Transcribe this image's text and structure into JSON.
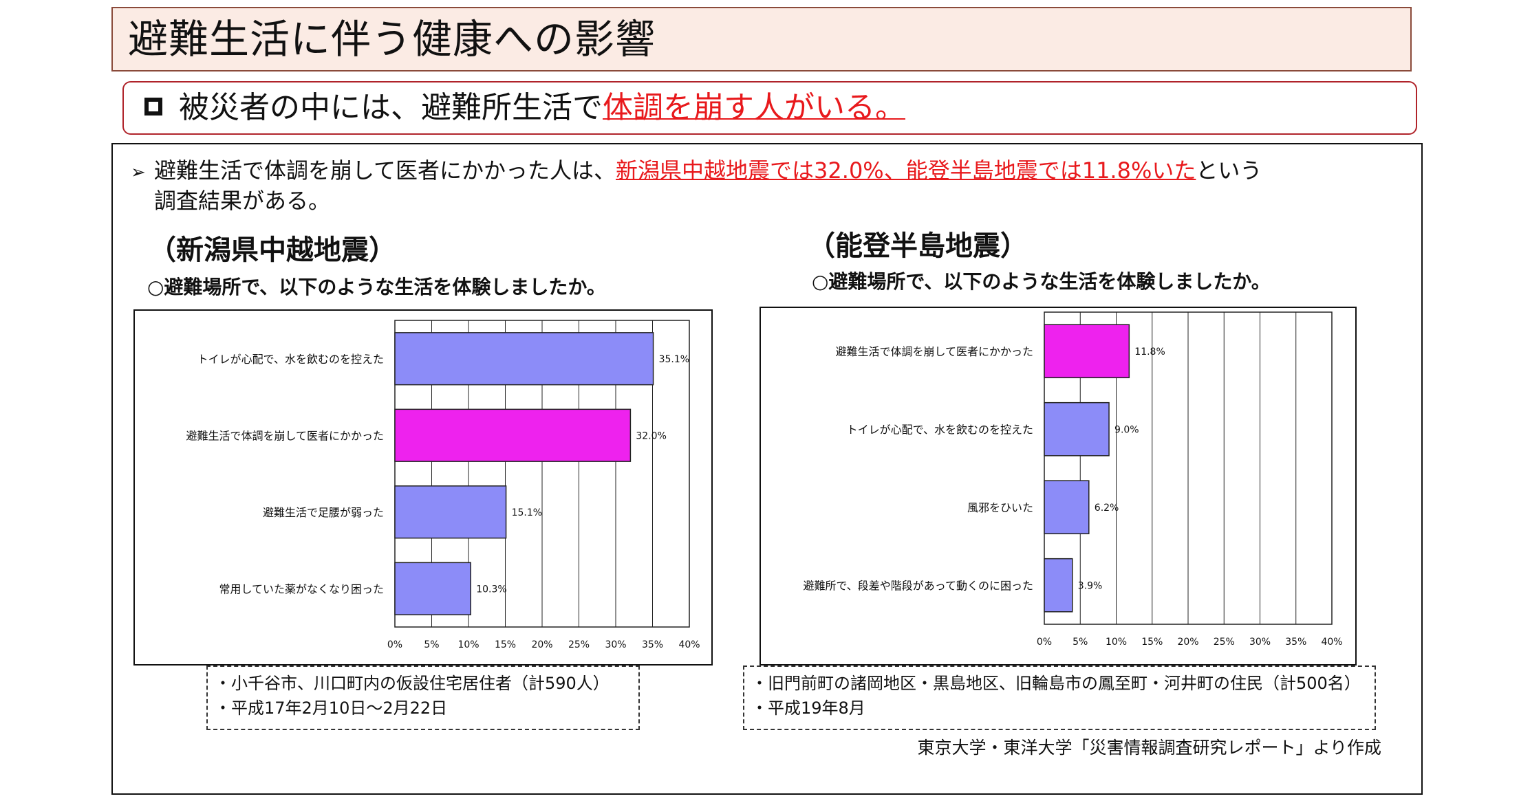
{
  "page": {
    "title": "避難生活に伴う健康への影響",
    "subtitle_prefix": "被災者の中には、避難所生活で",
    "subtitle_highlight": "体調を崩す人がいる。",
    "bullet": {
      "prefix": "避難生活で体調を崩して医者にかかった人は、",
      "highlight": "新潟県中越地震では32.0%、能登半島地震では11.8%いた",
      "suffix": "という",
      "line2": "調査結果がある。"
    },
    "source": "東京大学・東洋大学「災害情報調査研究レポート」より作成"
  },
  "colors": {
    "bar": "#8c8cf8",
    "highlight_bar": "#ee22ee",
    "accent_red": "#e8191c"
  },
  "panels": [
    {
      "heading": "（新潟県中越地震）",
      "question": "○避難場所で、以下のような生活を体験しましたか。",
      "notes": [
        "・小千谷市、川口町内の仮設住宅居住者（計590人）",
        "・平成17年2月10日～2月22日"
      ]
    },
    {
      "heading": "（能登半島地震）",
      "question": "○避難場所で、以下のような生活を体験しましたか。",
      "notes": [
        "・旧門前町の諸岡地区・黒島地区、旧輪島市の鳳至町・河井町の住民（計500名）",
        "・平成19年8月"
      ]
    }
  ],
  "chart_data": [
    {
      "type": "bar",
      "orientation": "horizontal",
      "title": "",
      "categories": [
        "トイレが心配で、水を飲むのを控えた",
        "避難生活で体調を崩して医者にかかった",
        "避難生活で足腰が弱った",
        "常用していた薬がなくなり困った"
      ],
      "values": [
        35.1,
        32.0,
        15.1,
        10.3
      ],
      "value_labels": [
        "35.1%",
        "32.0%",
        "15.1%",
        "10.3%"
      ],
      "highlight_index": 1,
      "xlim": [
        0,
        40
      ],
      "xticks": [
        "0%",
        "5%",
        "10%",
        "15%",
        "20%",
        "25%",
        "30%",
        "35%",
        "40%"
      ],
      "grid": "vertical"
    },
    {
      "type": "bar",
      "orientation": "horizontal",
      "title": "",
      "categories": [
        "避難生活で体調を崩して医者にかかった",
        "トイレが心配で、水を飲むのを控えた",
        "風邪をひいた",
        "避難所で、段差や階段があって動くのに困った"
      ],
      "values": [
        11.8,
        9.0,
        6.2,
        3.9
      ],
      "value_labels": [
        "11.8%",
        "9.0%",
        "6.2%",
        "3.9%"
      ],
      "highlight_index": 0,
      "xlim": [
        0,
        40
      ],
      "xticks": [
        "0%",
        "5%",
        "10%",
        "15%",
        "20%",
        "25%",
        "30%",
        "35%",
        "40%"
      ],
      "grid": "vertical"
    }
  ]
}
